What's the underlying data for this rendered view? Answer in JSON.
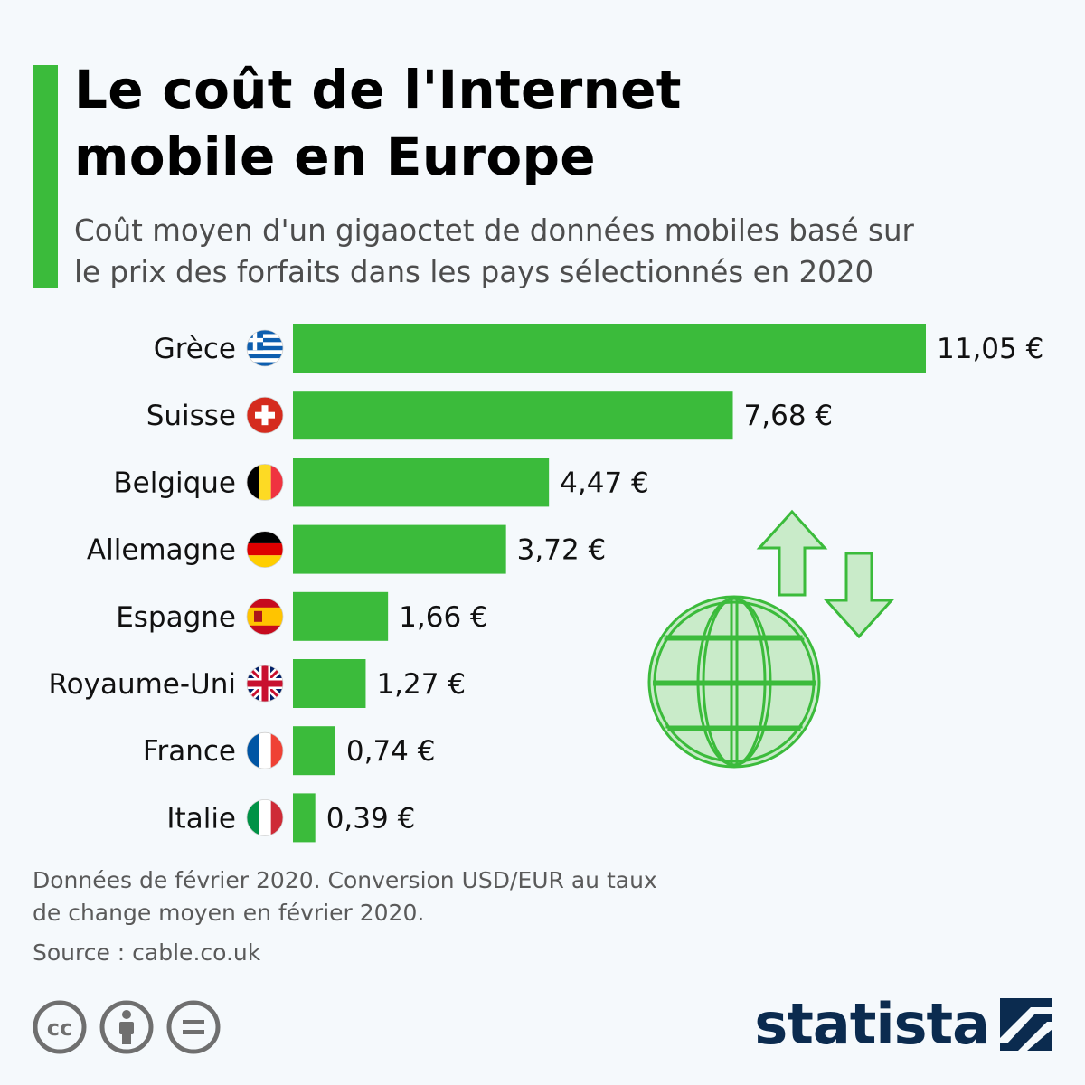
{
  "header": {
    "title_line1": "Le coût de l'Internet",
    "title_line2": "mobile en Europe",
    "subtitle_line1": "Coût moyen d'un gigaoctet de données mobiles basé sur",
    "subtitle_line2": "le prix des forfaits dans les pays sélectionnés en 2020"
  },
  "chart_data": {
    "type": "bar",
    "orientation": "horizontal",
    "categories": [
      "Grèce",
      "Suisse",
      "Belgique",
      "Allemagne",
      "Espagne",
      "Royaume-Uni",
      "France",
      "Italie"
    ],
    "values": [
      11.05,
      7.68,
      4.47,
      3.72,
      1.66,
      1.27,
      0.74,
      0.39
    ],
    "value_labels": [
      "11,05 €",
      "7,68 €",
      "4,47 €",
      "3,72 €",
      "1,66 €",
      "1,27 €",
      "0,74 €",
      "0,39 €"
    ],
    "flags": [
      "greece-flag-icon",
      "switzerland-flag-icon",
      "belgium-flag-icon",
      "germany-flag-icon",
      "spain-flag-icon",
      "uk-flag-icon",
      "france-flag-icon",
      "italy-flag-icon"
    ],
    "bar_color": "#3bbb3b",
    "xlim": [
      0,
      11.05
    ],
    "grid": false,
    "legend": "none",
    "decoration": "globe-with-arrows-icon"
  },
  "footer": {
    "note_line1": "Données de février 2020. Conversion USD/EUR au taux",
    "note_line2": "de change moyen en février 2020.",
    "source": "Source : cable.co.uk",
    "license_icons": [
      "cc-icon",
      "attribution-icon",
      "no-derivatives-icon"
    ],
    "brand": "statista"
  },
  "colors": {
    "accent": "#3bbb3b",
    "brand": "#0b2b4f",
    "background": "#f5f9fc"
  }
}
